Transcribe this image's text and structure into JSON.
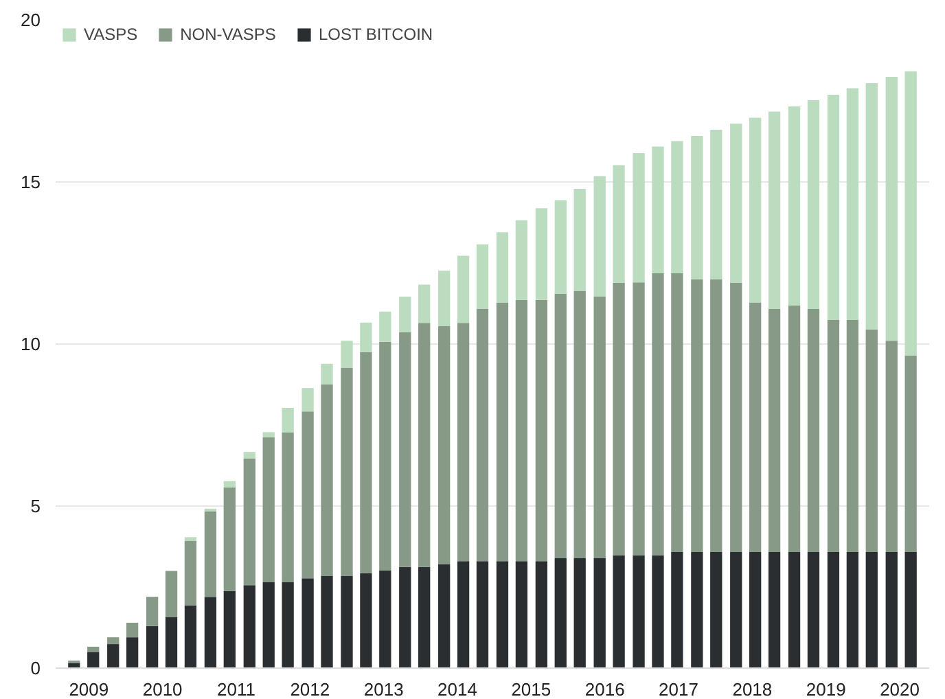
{
  "chart_data": {
    "type": "bar",
    "stacked": true,
    "x": [
      2008.8,
      2009.06,
      2009.33,
      2009.59,
      2009.86,
      2010.12,
      2010.38,
      2010.65,
      2010.91,
      2011.18,
      2011.44,
      2011.7,
      2011.97,
      2012.23,
      2012.5,
      2012.76,
      2013.02,
      2013.29,
      2013.55,
      2013.82,
      2014.08,
      2014.34,
      2014.61,
      2014.87,
      2015.14,
      2015.4,
      2015.66,
      2015.93,
      2016.19,
      2016.46,
      2016.72,
      2016.98,
      2017.25,
      2017.51,
      2017.78,
      2018.04,
      2018.3,
      2018.57,
      2018.83,
      2019.1,
      2019.36,
      2019.62,
      2019.89,
      2020.15
    ],
    "series": [
      {
        "name": "LOST BITCOIN",
        "color": "#2b2e31",
        "values": [
          0.15,
          0.5,
          0.74,
          0.95,
          1.3,
          1.57,
          1.94,
          2.2,
          2.38,
          2.56,
          2.66,
          2.66,
          2.77,
          2.85,
          2.85,
          2.93,
          3.02,
          3.12,
          3.12,
          3.2,
          3.3,
          3.3,
          3.3,
          3.3,
          3.3,
          3.39,
          3.39,
          3.39,
          3.48,
          3.48,
          3.48,
          3.58,
          3.58,
          3.58,
          3.58,
          3.58,
          3.58,
          3.58,
          3.58,
          3.58,
          3.58,
          3.58,
          3.58,
          3.58
        ]
      },
      {
        "name": "NON-VASPS",
        "color": "#879a87",
        "values": [
          0.08,
          0.16,
          0.21,
          0.45,
          0.9,
          1.43,
          1.99,
          2.64,
          3.19,
          3.91,
          4.46,
          4.62,
          5.15,
          5.9,
          6.42,
          6.82,
          7.05,
          7.24,
          7.53,
          7.35,
          7.35,
          7.79,
          7.97,
          8.06,
          8.06,
          8.16,
          8.25,
          8.07,
          8.41,
          8.42,
          8.7,
          8.6,
          8.41,
          8.41,
          8.31,
          7.7,
          7.5,
          7.61,
          7.5,
          7.16,
          7.16,
          6.87,
          6.52,
          6.06
        ]
      },
      {
        "name": "VASPS",
        "color": "#bcdcbf",
        "values": [
          0,
          0,
          0,
          0,
          0,
          0,
          0.11,
          0.08,
          0.2,
          0.2,
          0.16,
          0.75,
          0.72,
          0.64,
          0.83,
          0.91,
          0.93,
          1.1,
          1.18,
          1.71,
          2.07,
          1.98,
          2.18,
          2.46,
          2.83,
          2.89,
          3.15,
          3.72,
          3.63,
          3.99,
          3.91,
          4.08,
          4.43,
          4.62,
          4.91,
          5.7,
          6.09,
          6.14,
          6.44,
          6.95,
          7.15,
          7.6,
          8.14,
          8.77
        ]
      }
    ],
    "xlim": [
      2008.55,
      2020.4
    ],
    "xticks": [
      2009,
      2010,
      2011,
      2012,
      2013,
      2014,
      2015,
      2016,
      2017,
      2018,
      2019,
      2020
    ],
    "ylim": [
      0,
      20
    ],
    "yticks": [
      0,
      5,
      10,
      15,
      20
    ],
    "grid": "y",
    "legend": "top left"
  }
}
